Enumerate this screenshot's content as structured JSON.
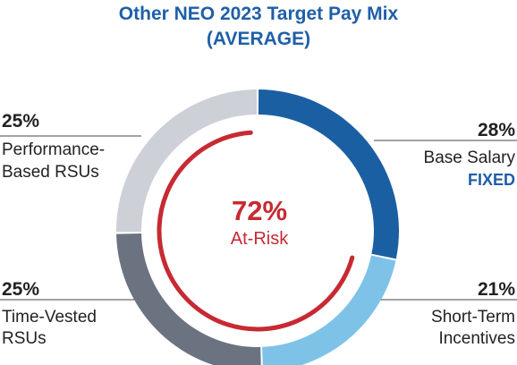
{
  "chart_data": {
    "type": "pie",
    "title": "Other NEO 2023 Target Pay Mix",
    "subtitle": "(AVERAGE)",
    "slices": [
      {
        "label_lines": [
          "Base Salary"
        ],
        "value": 28,
        "display": "28%",
        "color": "#1b5fa3",
        "tag": "FIXED"
      },
      {
        "label_lines": [
          "Short-Term",
          "Incentives"
        ],
        "value": 21,
        "display": "21%",
        "color": "#7ec2e8"
      },
      {
        "label_lines": [
          "Time-Vested",
          "RSUs"
        ],
        "value": 25,
        "display": "25%",
        "color": "#6b7380"
      },
      {
        "label_lines": [
          "Performance-",
          "Based RSUs"
        ],
        "value": 25,
        "display": "25%",
        "color": "#cdd0d6"
      }
    ],
    "center": {
      "value": "72%",
      "label": "At-Risk",
      "color": "#c62a33"
    }
  }
}
